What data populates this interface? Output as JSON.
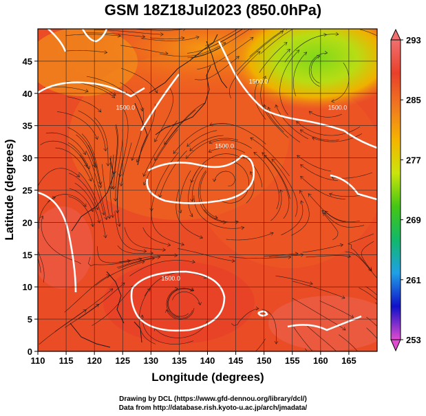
{
  "title": "GSM 18Z18Jul2023 (850.0hPa)",
  "xlabel": "Longitude (degrees)",
  "ylabel": "Latitude  (degrees)",
  "credits": [
    "Drawing by DCL (https://www.gfd-dennou.org/library/dcl/)",
    "Data from http://database.rish.kyoto-u.ac.jp/arch/jmadata/"
  ],
  "chart_data": {
    "type": "heatmap",
    "title": "GSM 18Z18Jul2023 (850.0hPa)",
    "xlabel": "Longitude (degrees)",
    "ylabel": "Latitude  (degrees)",
    "xlim": [
      110,
      170
    ],
    "ylim": [
      0,
      50
    ],
    "xticks": [
      110,
      115,
      120,
      125,
      130,
      135,
      140,
      145,
      150,
      155,
      160,
      165
    ],
    "yticks": [
      0,
      5,
      10,
      15,
      20,
      25,
      30,
      35,
      40,
      45
    ],
    "grid": true,
    "colorbar": {
      "ticks": [
        253,
        261,
        269,
        277,
        285,
        293
      ],
      "min": 253,
      "max": 293,
      "colors": [
        "#e04bd0",
        "#1010c8",
        "#1fa0e6",
        "#12b86a",
        "#44c614",
        "#cbe40c",
        "#f5b400",
        "#f07820",
        "#e8402a",
        "#f07070"
      ]
    },
    "contour_labels": [
      {
        "text": "1500.0",
        "lon": 125.5,
        "lat": 37.5
      },
      {
        "text": "1500.0",
        "lon": 143,
        "lat": 31.5
      },
      {
        "text": "1500.0",
        "lon": 163,
        "lat": 37.5
      },
      {
        "text": "1500.0",
        "lon": 133.5,
        "lat": 11
      },
      {
        "text": "1500.0",
        "lon": 149,
        "lat": 41.5
      }
    ]
  }
}
